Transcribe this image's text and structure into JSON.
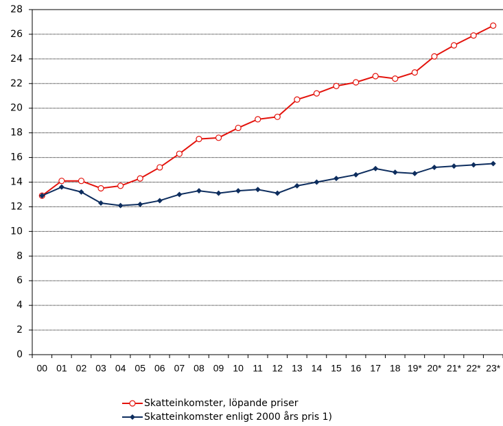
{
  "chart_data": {
    "type": "line",
    "categories": [
      "00",
      "01",
      "02",
      "03",
      "04",
      "05",
      "06",
      "07",
      "08",
      "09",
      "10",
      "11",
      "12",
      "13",
      "14",
      "15",
      "16",
      "17",
      "18",
      "19*",
      "20*",
      "21*",
      "22*",
      "23*"
    ],
    "series": [
      {
        "name": "Skatteinkomster, löpande priser",
        "color": "#e3120b",
        "marker": "open-circle",
        "values": [
          12.9,
          14.1,
          14.1,
          13.5,
          13.7,
          14.3,
          15.2,
          16.3,
          17.5,
          17.6,
          18.4,
          19.1,
          19.3,
          20.7,
          21.2,
          21.8,
          22.1,
          22.6,
          22.4,
          22.9,
          24.2,
          25.1,
          25.9,
          26.7
        ]
      },
      {
        "name": "Skatteinkomster enligt 2000 års pris 1)",
        "color": "#0d2d5e",
        "marker": "diamond",
        "values": [
          12.9,
          13.6,
          13.2,
          12.3,
          12.1,
          12.2,
          12.5,
          13.0,
          13.3,
          13.1,
          13.3,
          13.4,
          13.1,
          13.7,
          14.0,
          14.3,
          14.6,
          15.1,
          14.8,
          14.7,
          15.2,
          15.3,
          15.4,
          15.5
        ]
      }
    ],
    "ylim": [
      0,
      28
    ],
    "yticks": [
      0,
      2,
      4,
      6,
      8,
      10,
      12,
      14,
      16,
      18,
      20,
      22,
      24,
      26,
      28
    ],
    "grid": true
  }
}
